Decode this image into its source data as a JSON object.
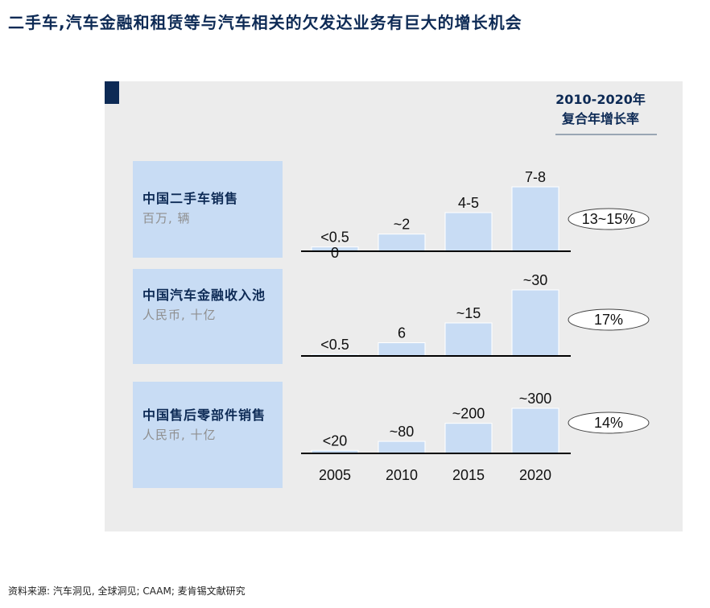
{
  "title": "二手车,汽车金融和租赁等与汽车相关的欠发达业务有巨大的增长机会",
  "cagr_header": {
    "line1": "2010-2020年",
    "line2": "复合年增长率"
  },
  "footer": "资料来源: 汽车洞见, 全球洞见; CAAM; 麦肯锡文献研究",
  "colors": {
    "bar_fill": "#c8dcf4",
    "bar_stroke": "#ffffff",
    "accent": "#0d2a55",
    "panel": "#ececec"
  },
  "chart_data": [
    {
      "type": "bar",
      "title": "中国二手车销售",
      "unit": "百万, 辆",
      "categories": [
        "2005",
        "2010",
        "2015",
        "2020"
      ],
      "values": [
        0.5,
        2,
        4.5,
        7.5
      ],
      "data_labels": [
        "<0.5",
        "~2",
        "4-5",
        "7-8"
      ],
      "extra_label": "0",
      "cagr": "13~15%"
    },
    {
      "type": "bar",
      "title": "中国汽车金融收入池",
      "unit": "人民币, 十亿",
      "categories": [
        "2005",
        "2010",
        "2015",
        "2020"
      ],
      "values": [
        0.5,
        6,
        15,
        30
      ],
      "data_labels": [
        "<0.5",
        "6",
        "~15",
        "~30"
      ],
      "cagr": "17%"
    },
    {
      "type": "bar",
      "title": "中国售后零部件销售",
      "unit": "人民币, 十亿",
      "categories": [
        "2005",
        "2010",
        "2015",
        "2020"
      ],
      "values": [
        20,
        80,
        200,
        300
      ],
      "data_labels": [
        "<20",
        "~80",
        "~200",
        "~300"
      ],
      "cagr": "14%"
    }
  ]
}
